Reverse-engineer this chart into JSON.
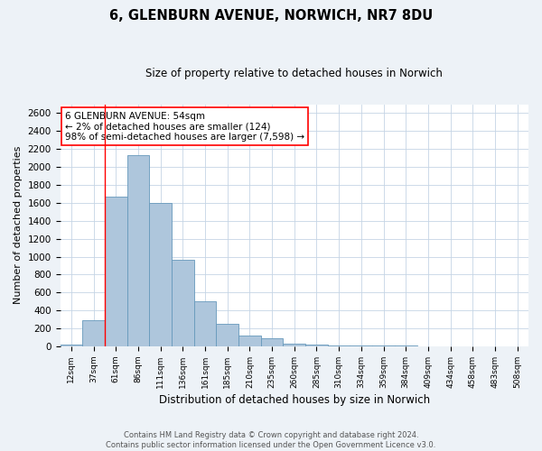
{
  "title": "6, GLENBURN AVENUE, NORWICH, NR7 8DU",
  "subtitle": "Size of property relative to detached houses in Norwich",
  "xlabel": "Distribution of detached houses by size in Norwich",
  "ylabel": "Number of detached properties",
  "bin_labels": [
    "12sqm",
    "37sqm",
    "61sqm",
    "86sqm",
    "111sqm",
    "136sqm",
    "161sqm",
    "185sqm",
    "210sqm",
    "235sqm",
    "260sqm",
    "285sqm",
    "310sqm",
    "334sqm",
    "359sqm",
    "384sqm",
    "409sqm",
    "434sqm",
    "458sqm",
    "483sqm",
    "508sqm"
  ],
  "bar_values": [
    20,
    295,
    1670,
    2130,
    1600,
    965,
    505,
    255,
    125,
    95,
    30,
    15,
    10,
    5,
    5,
    5,
    2,
    2,
    2,
    0,
    2
  ],
  "bar_color": "#aec6dc",
  "bar_edge_color": "#6699bb",
  "ylim": [
    0,
    2700
  ],
  "yticks": [
    0,
    200,
    400,
    600,
    800,
    1000,
    1200,
    1400,
    1600,
    1800,
    2000,
    2200,
    2400,
    2600
  ],
  "annotation_line1": "6 GLENBURN AVENUE: 54sqm",
  "annotation_line2": "← 2% of detached houses are smaller (124)",
  "annotation_line3": "98% of semi-detached houses are larger (7,598) →",
  "footer_line1": "Contains HM Land Registry data © Crown copyright and database right 2024.",
  "footer_line2": "Contains public sector information licensed under the Open Government Licence v3.0.",
  "bg_color": "#edf2f7",
  "plot_bg_color": "#ffffff",
  "grid_color": "#c5d5e5"
}
